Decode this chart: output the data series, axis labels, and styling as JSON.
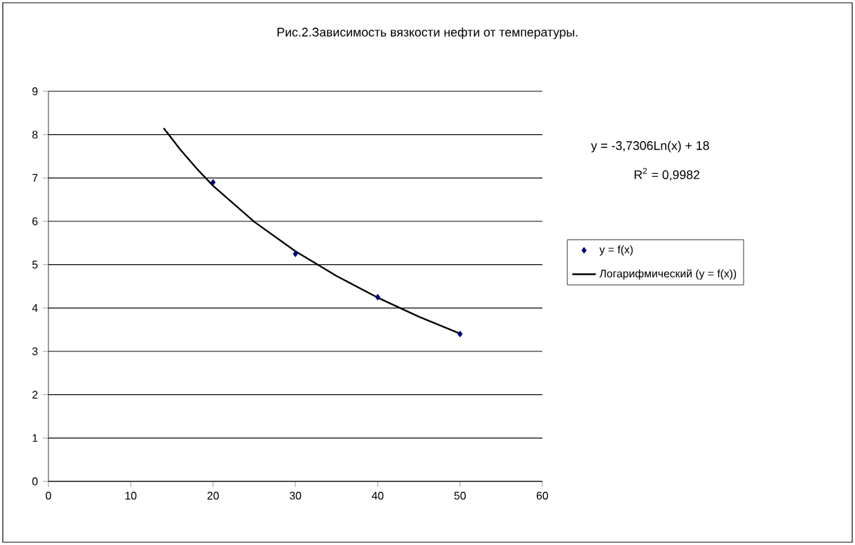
{
  "chart_data": {
    "type": "scatter",
    "title": "Рис.2.Зависимость вязкости нефти от температуры.",
    "xlim": [
      0,
      60
    ],
    "xticks": [
      0,
      10,
      20,
      30,
      40,
      50,
      60
    ],
    "ylim": [
      0,
      9
    ],
    "yticks": [
      0,
      1,
      2,
      3,
      4,
      5,
      6,
      7,
      8,
      9
    ],
    "grid": "y",
    "legend": "right",
    "marker": "diamond",
    "annotations": [
      "y = -3,7306Ln(x) + 18",
      "R$^{2}$ = 0,9982"
    ],
    "series": [
      {
        "name": "y = f(x)",
        "color": "#000080",
        "x": [
          20,
          30,
          40,
          50
        ],
        "values": [
          6.9,
          5.25,
          4.25,
          3.4
        ]
      },
      {
        "name": "Логарифмический (y = f(x))",
        "type": "line",
        "color": "#000000",
        "marker": "none",
        "line_style": "solid",
        "x": [
          14,
          16,
          18,
          20,
          25,
          30,
          35,
          40,
          45,
          50
        ],
        "values": [
          8.15,
          7.66,
          7.22,
          6.82,
          5.99,
          5.31,
          4.74,
          4.24,
          3.8,
          3.41
        ]
      }
    ]
  }
}
